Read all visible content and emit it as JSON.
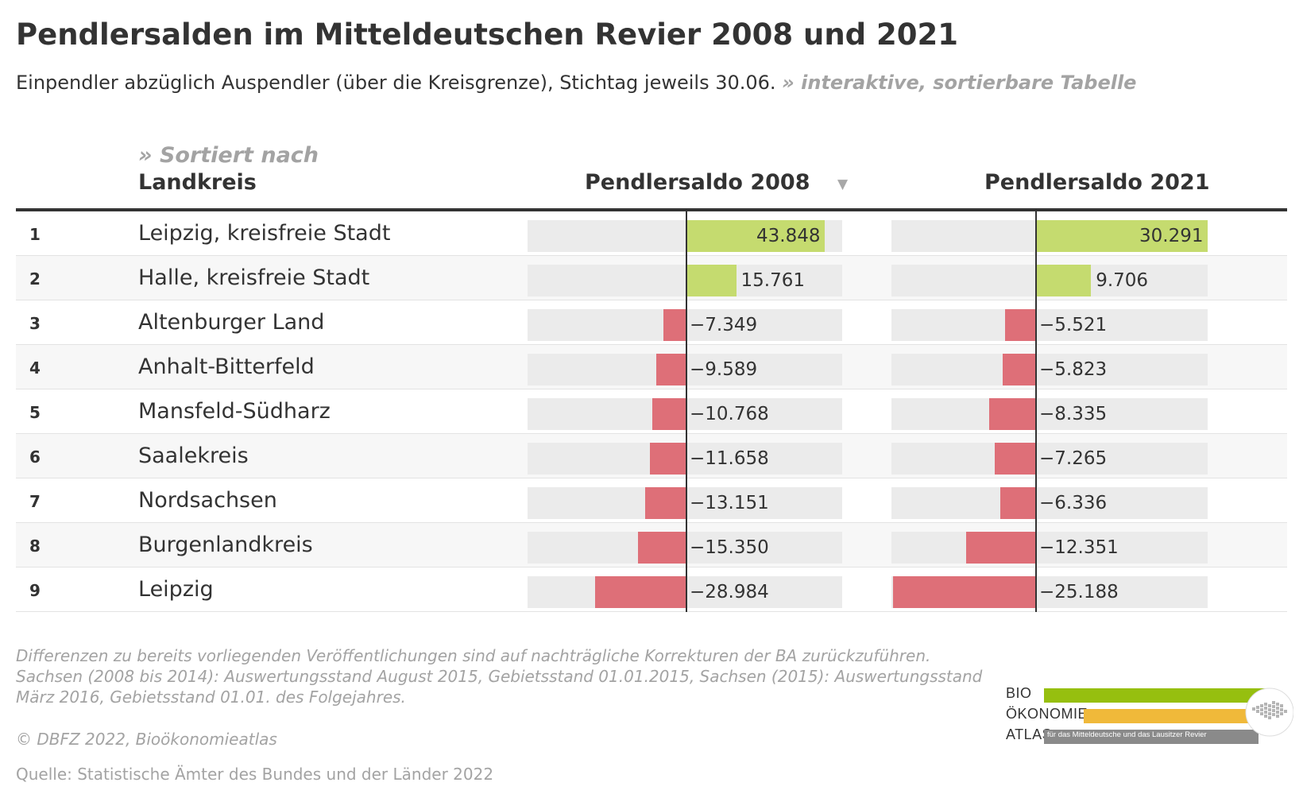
{
  "title": "Pendlersalden im Mitteldeutschen Revier 2008 und 2021",
  "subtitle": "Einpendler abzüglich Auspendler (über die Kreisgrenze), Stichtag jeweils 30.06.",
  "subtitle_link": "» interaktive, sortierbare Tabelle",
  "sort_hint": "» Sortiert nach",
  "sort_arrow": "▼",
  "columns": {
    "landkreis": "Landkreis",
    "saldo_2008": "Pendlersaldo 2008",
    "saldo_2021": "Pendlersaldo 2021"
  },
  "colors": {
    "positive": "#c5db6f",
    "negative": "#de6f78",
    "track": "#ebebeb"
  },
  "chart_data": {
    "type": "table",
    "sorted_by": "Pendlersaldo 2008",
    "rows": [
      {
        "rank": "1",
        "name": "Leipzig, kreisfreie Stadt",
        "v2008": 43848,
        "v2021": 30291,
        "l2008": "43.848",
        "l2021": "30.291"
      },
      {
        "rank": "2",
        "name": "Halle, kreisfreie Stadt",
        "v2008": 15761,
        "v2021": 9706,
        "l2008": "15.761",
        "l2021": "9.706"
      },
      {
        "rank": "3",
        "name": "Altenburger Land",
        "v2008": -7349,
        "v2021": -5521,
        "l2008": "−7.349",
        "l2021": "−5.521"
      },
      {
        "rank": "4",
        "name": "Anhalt-Bitterfeld",
        "v2008": -9589,
        "v2021": -5823,
        "l2008": "−9.589",
        "l2021": "−5.823"
      },
      {
        "rank": "5",
        "name": "Mansfeld-Südharz",
        "v2008": -10768,
        "v2021": -8335,
        "l2008": "−10.768",
        "l2021": "−8.335"
      },
      {
        "rank": "6",
        "name": "Saalekreis",
        "v2008": -11658,
        "v2021": -7265,
        "l2008": "−11.658",
        "l2021": "−7.265"
      },
      {
        "rank": "7",
        "name": "Nordsachsen",
        "v2008": -13151,
        "v2021": -6336,
        "l2008": "−13.151",
        "l2021": "−6.336"
      },
      {
        "rank": "8",
        "name": "Burgenlandkreis",
        "v2008": -15350,
        "v2021": -12351,
        "l2008": "−15.350",
        "l2021": "−12.351"
      },
      {
        "rank": "9",
        "name": "Leipzig",
        "v2008": -28984,
        "v2021": -25188,
        "l2008": "−28.984",
        "l2021": "−25.188"
      }
    ]
  },
  "footnote": "Differenzen zu bereits vorliegenden Veröffentlichungen sind auf nachträgliche Korrekturen der BA zurückzuführen. Sachsen (2008 bis 2014): Auswertungsstand August 2015, Gebietsstand 01.01.2015, Sachsen (2015): Auswertungsstand März 2016, Gebietsstand 01.01. des Folgejahres.",
  "copyright": "© DBFZ 2022, Bioökonomieatlas",
  "source": "Quelle: Statistische Ämter des Bundes und der Länder 2022",
  "logo": {
    "line1": "BIO",
    "line2": "ÖKONOMIE",
    "line3": "ATLAS",
    "tagline": "für das Mitteldeutsche und das Lausitzer Revier"
  }
}
